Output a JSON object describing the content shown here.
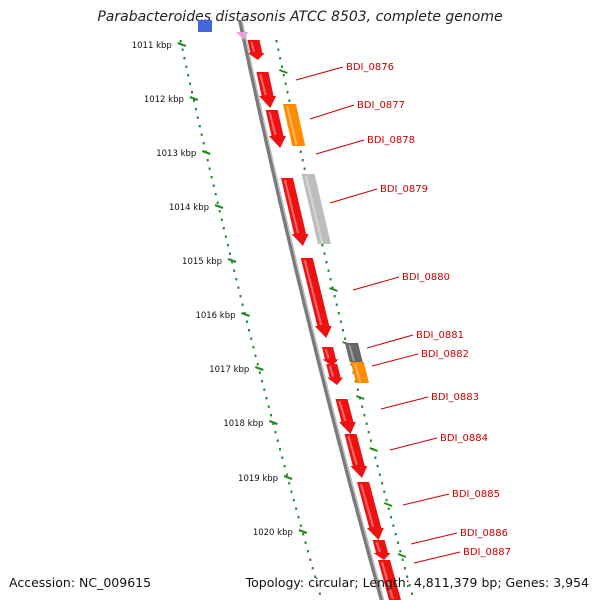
{
  "title": "Parabacteroides distasonis ATCC 8503, complete genome",
  "footer": {
    "accession": "Accession: NC_009615",
    "summary": "Topology: circular; Length: 4,811,379 bp; Genes: 3,954"
  },
  "colors": {
    "cds": "#ee1111",
    "rna_orange": "#ff8c00",
    "grey_light": "#bbbbbb",
    "grey_dark": "#666666",
    "backbone": "#888888",
    "ticks": "#228822",
    "label": "#cc0000"
  },
  "ruler": {
    "unit": "kbp",
    "positions": [
      1011,
      1012,
      1013,
      1014,
      1015,
      1016,
      1017,
      1018,
      1019,
      1020
    ],
    "labels": [
      "1011 kbp",
      "1012 kbp",
      "1013 kbp",
      "1014 kbp",
      "1015 kbp",
      "1016 kbp",
      "1017 kbp",
      "1018 kbp",
      "1019 kbp",
      "1020 kbp"
    ]
  },
  "genes": [
    {
      "name": "BDI_0876",
      "color": "cds"
    },
    {
      "name": "BDI_0877",
      "color": "rna_orange"
    },
    {
      "name": "BDI_0878",
      "color": "cds"
    },
    {
      "name": "BDI_0879",
      "color": "grey_light"
    },
    {
      "name": "BDI_0880",
      "color": "cds"
    },
    {
      "name": "BDI_0881",
      "color": "grey_dark"
    },
    {
      "name": "BDI_0882",
      "color": "rna_orange"
    },
    {
      "name": "BDI_0883",
      "color": "cds"
    },
    {
      "name": "BDI_0884",
      "color": "cds"
    },
    {
      "name": "BDI_0885",
      "color": "cds"
    },
    {
      "name": "BDI_0886",
      "color": "cds"
    },
    {
      "name": "BDI_0887",
      "color": "cds"
    }
  ]
}
